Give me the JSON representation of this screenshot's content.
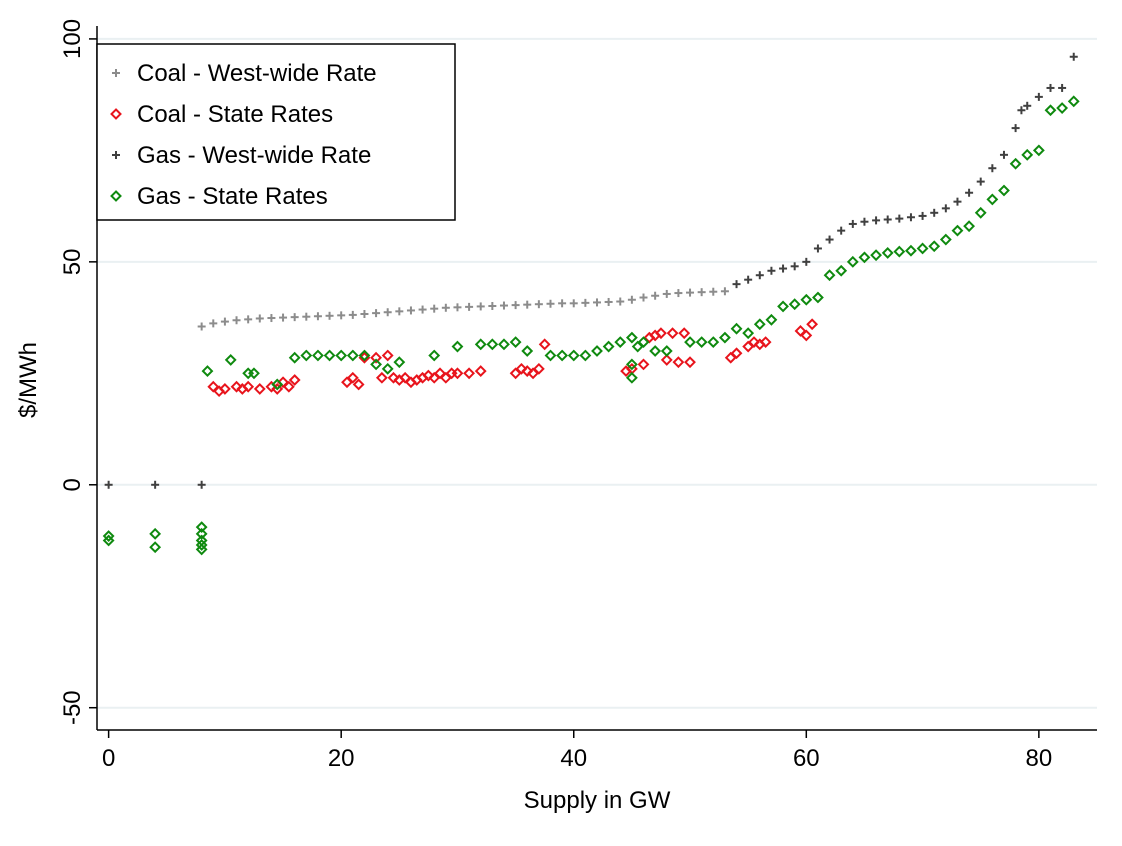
{
  "chart_data": {
    "type": "scatter",
    "xlabel": "Supply in GW",
    "ylabel": "$/MWh",
    "xlim": [
      -1,
      85
    ],
    "ylim": [
      -55,
      102
    ],
    "xticks": [
      0,
      20,
      40,
      60,
      80
    ],
    "yticks": [
      -50,
      0,
      50,
      100
    ],
    "grid": "horizontal",
    "legend_position": "top-left",
    "series": [
      {
        "name": "Coal - West-wide Rate",
        "marker": "plus",
        "color": "#8c8c8c",
        "x": [
          8,
          9,
          10,
          11,
          12,
          13,
          14,
          15,
          16,
          17,
          18,
          19,
          20,
          21,
          22,
          23,
          24,
          25,
          26,
          27,
          28,
          29,
          30,
          31,
          32,
          33,
          34,
          35,
          36,
          37,
          38,
          39,
          40,
          41,
          42,
          43,
          44,
          45,
          46,
          47,
          48,
          49,
          50,
          51,
          52,
          53
        ],
        "y": [
          35.5,
          36.2,
          36.6,
          36.9,
          37.1,
          37.3,
          37.4,
          37.5,
          37.6,
          37.7,
          37.8,
          37.9,
          38,
          38.1,
          38.3,
          38.5,
          38.7,
          38.9,
          39.1,
          39.3,
          39.5,
          39.7,
          39.8,
          39.9,
          40,
          40.1,
          40.2,
          40.3,
          40.4,
          40.5,
          40.6,
          40.7,
          40.7,
          40.8,
          40.9,
          41,
          41.1,
          41.5,
          42,
          42.4,
          42.8,
          43,
          43.1,
          43.2,
          43.3,
          43.4
        ]
      },
      {
        "name": "Coal - State Rates",
        "marker": "diamond",
        "color": "#e8141c",
        "x": [
          9,
          9.5,
          10,
          11,
          11.5,
          12,
          13,
          14,
          14.5,
          15,
          15.5,
          16,
          20.5,
          21,
          21.5,
          22,
          23,
          23.5,
          24,
          24.5,
          25,
          25.5,
          26,
          26.5,
          27,
          27.5,
          28,
          28.5,
          29,
          29.5,
          30,
          31,
          32,
          35,
          35.5,
          36,
          36.5,
          37,
          37.5,
          44.5,
          45,
          46,
          46.5,
          47,
          47.5,
          48,
          48.5,
          49,
          49.5,
          50,
          53.5,
          54,
          55,
          55.5,
          56,
          56.5,
          59.5,
          60,
          60.5
        ],
        "y": [
          22,
          21,
          21.5,
          22,
          21.5,
          22,
          21.5,
          22,
          21.5,
          23,
          22,
          23.5,
          23,
          24,
          22.5,
          28.5,
          28.5,
          24,
          29,
          24,
          23.5,
          24,
          23,
          23.5,
          24,
          24.5,
          24,
          25,
          24,
          25,
          25,
          25,
          25.5,
          25,
          26,
          25.5,
          25,
          26,
          31.5,
          25.5,
          26,
          27,
          33,
          33.5,
          34,
          28,
          34,
          27.5,
          34,
          27.5,
          28.5,
          29.5,
          31,
          32,
          31.5,
          32,
          34.5,
          33.5,
          36
        ]
      },
      {
        "name": "Gas - West-wide Rate",
        "marker": "plus",
        "color": "#404040",
        "x": [
          0,
          4,
          8,
          54,
          55,
          56,
          57,
          58,
          59,
          60,
          61,
          62,
          63,
          64,
          65,
          66,
          67,
          68,
          69,
          70,
          71,
          72,
          73,
          74,
          75,
          76,
          77,
          78,
          78.5,
          79,
          80,
          81,
          82,
          83
        ],
        "y": [
          0,
          0,
          0,
          45,
          46,
          47,
          48,
          48.5,
          49,
          50,
          53,
          55,
          57,
          58.5,
          59,
          59.3,
          59.5,
          59.7,
          60,
          60.3,
          61,
          62,
          63.5,
          65.5,
          68,
          71,
          74,
          80,
          84,
          85,
          87,
          89,
          89,
          96
        ]
      },
      {
        "name": "Gas - State Rates",
        "marker": "diamond",
        "color": "#0f8a0f",
        "x": [
          0,
          0,
          4,
          4,
          8,
          8,
          8,
          8,
          8,
          8.5,
          10.5,
          12,
          12.5,
          14.5,
          16,
          17,
          18,
          19,
          20,
          21,
          22,
          23,
          24,
          25,
          28,
          30,
          32,
          33,
          34,
          35,
          36,
          38,
          39,
          40,
          41,
          42,
          43,
          44,
          45,
          45,
          45,
          45.5,
          46,
          47,
          48,
          50,
          51,
          52,
          53,
          54,
          55,
          56,
          57,
          58,
          59,
          60,
          61,
          62,
          63,
          64,
          65,
          66,
          67,
          68,
          69,
          70,
          71,
          72,
          73,
          74,
          75,
          76,
          77,
          78,
          79,
          80,
          81,
          82,
          83
        ],
        "y": [
          -11.5,
          -12.5,
          -11,
          -14,
          -9.5,
          -11,
          -12.5,
          -13.5,
          -14.5,
          25.5,
          28,
          25,
          25,
          22.5,
          28.5,
          29,
          29,
          29,
          29,
          29,
          29,
          27,
          26,
          27.5,
          29,
          31,
          31.5,
          31.5,
          31.5,
          32,
          30,
          29,
          29,
          29,
          29,
          30,
          31,
          32,
          33,
          27,
          24,
          31,
          32,
          30,
          30,
          32,
          32,
          32,
          33,
          35,
          34,
          36,
          37,
          40,
          40.5,
          41.5,
          42,
          47,
          48,
          50,
          51,
          51.5,
          52,
          52.3,
          52.5,
          53,
          53.5,
          55,
          57,
          58,
          61,
          64,
          66,
          72,
          74,
          75,
          84,
          84.5,
          86
        ]
      }
    ]
  }
}
